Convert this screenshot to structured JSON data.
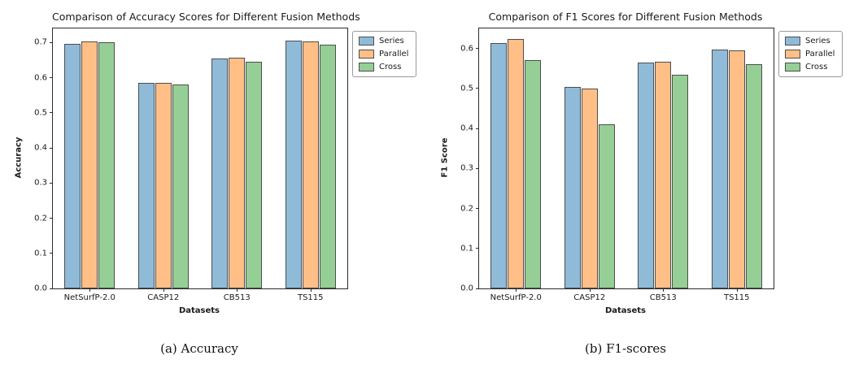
{
  "captions": {
    "a": "(a) Accuracy",
    "b": "(b) F1-scores"
  },
  "chart_data": [
    {
      "type": "bar",
      "title": "Comparison of Accuracy Scores for Different Fusion Methods",
      "xlabel": "Datasets",
      "ylabel": "Accuracy",
      "categories": [
        "NetSurfP-2.0",
        "CASP12",
        "CB513",
        "TS115"
      ],
      "series": [
        {
          "name": "Series",
          "color": "#8fbbd9",
          "edge": "#4d4d4d",
          "values": [
            0.696,
            0.585,
            0.655,
            0.706
          ]
        },
        {
          "name": "Parallel",
          "color": "#ffbf86",
          "edge": "#4d4d4d",
          "values": [
            0.702,
            0.586,
            0.656,
            0.704
          ]
        },
        {
          "name": "Cross",
          "color": "#95cf95",
          "edge": "#4d4d4d",
          "values": [
            0.7,
            0.58,
            0.645,
            0.694
          ]
        }
      ],
      "ylim": [
        0,
        0.74
      ],
      "yticks": [
        0,
        0.1,
        0.2,
        0.3,
        0.4,
        0.5,
        0.6,
        0.7
      ],
      "grid": false,
      "legend": {
        "position": "outside-upper-right",
        "entries": [
          "Series",
          "Parallel",
          "Cross"
        ]
      }
    },
    {
      "type": "bar",
      "title": "Comparison of F1 Scores for Different Fusion Methods",
      "xlabel": "Datasets",
      "ylabel": "F1 Score",
      "categories": [
        "NetSurfP-2.0",
        "CASP12",
        "CB513",
        "TS115"
      ],
      "series": [
        {
          "name": "Series",
          "color": "#8fbbd9",
          "edge": "#4d4d4d",
          "values": [
            0.613,
            0.503,
            0.565,
            0.597
          ]
        },
        {
          "name": "Parallel",
          "color": "#ffbf86",
          "edge": "#4d4d4d",
          "values": [
            0.624,
            0.5,
            0.567,
            0.595
          ]
        },
        {
          "name": "Cross",
          "color": "#95cf95",
          "edge": "#4d4d4d",
          "values": [
            0.57,
            0.41,
            0.535,
            0.56
          ]
        }
      ],
      "ylim": [
        0,
        0.65
      ],
      "yticks": [
        0,
        0.1,
        0.2,
        0.3,
        0.4,
        0.5,
        0.6
      ],
      "grid": false,
      "legend": {
        "position": "outside-upper-right",
        "entries": [
          "Series",
          "Parallel",
          "Cross"
        ]
      }
    }
  ]
}
